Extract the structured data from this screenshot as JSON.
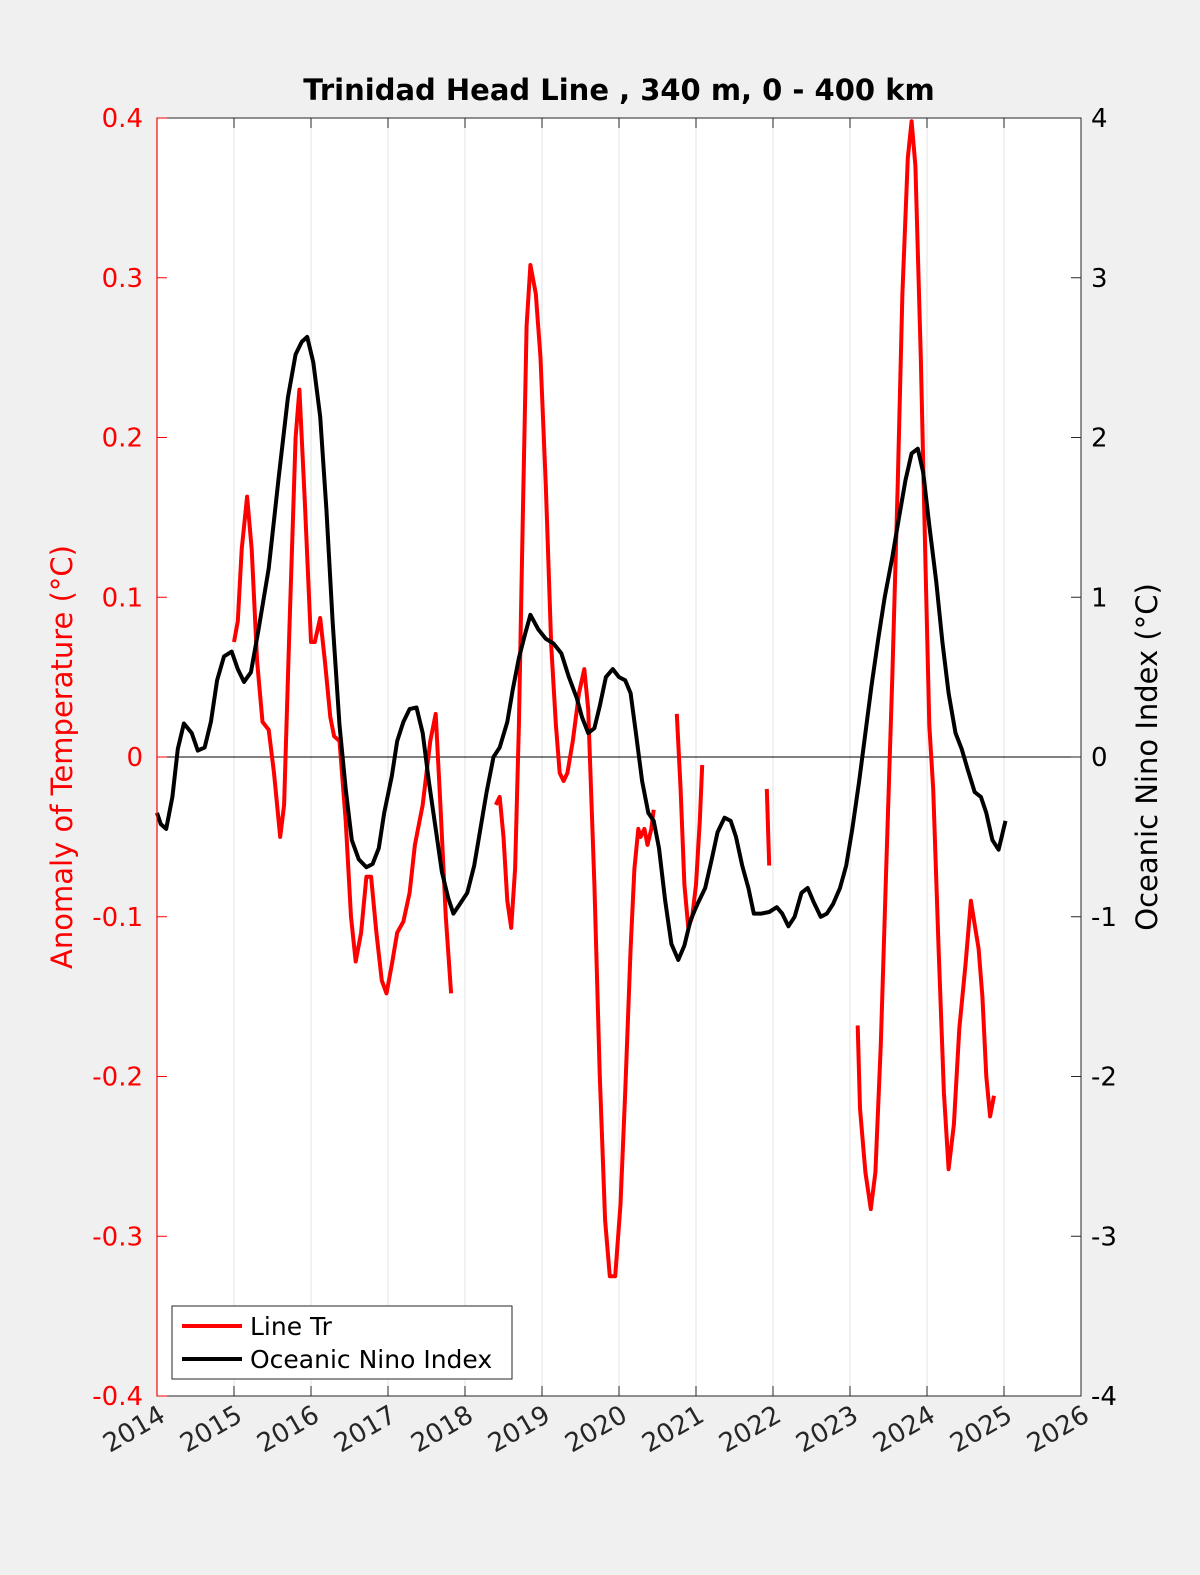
{
  "chart_data": {
    "type": "line",
    "title": "Trinidad Head Line , 340 m, 0 - 400 km",
    "xlabel": "",
    "ylabel_left": "Anomaly of Temperature (°C)",
    "ylabel_right": "Oceanic Nino Index (°C)",
    "xlim": [
      2014,
      2026
    ],
    "ylim_left": [
      -0.4,
      0.4
    ],
    "ylim_right": [
      -4,
      4
    ],
    "x_ticks": [
      "2014",
      "2015",
      "2016",
      "2017",
      "2018",
      "2019",
      "2020",
      "2021",
      "2022",
      "2023",
      "2024",
      "2025",
      "2026"
    ],
    "y_left_ticks": [
      "-0.4",
      "-0.3",
      "-0.2",
      "-0.1",
      "0",
      "0.1",
      "0.2",
      "0.3",
      "0.4"
    ],
    "y_right_ticks": [
      "-4",
      "-3",
      "-2",
      "-1",
      "0",
      "1",
      "2",
      "3",
      "4"
    ],
    "grid": "vertical",
    "zero_line": true,
    "legend_position": "bottom-left",
    "colors": {
      "line_tr": "#ff0000",
      "oni": "#000000",
      "left_axis": "#ff0000",
      "right_axis": "#000000"
    },
    "series": [
      {
        "name": "Line Tr",
        "axis": "left",
        "color": "#ff0000",
        "segments": [
          [
            [
              2015.0,
              0.072
            ],
            [
              2015.05,
              0.085
            ],
            [
              2015.1,
              0.13
            ],
            [
              2015.17,
              0.163
            ],
            [
              2015.23,
              0.13
            ],
            [
              2015.3,
              0.06
            ],
            [
              2015.37,
              0.022
            ],
            [
              2015.45,
              0.017
            ],
            [
              2015.52,
              -0.01
            ],
            [
              2015.6,
              -0.05
            ],
            [
              2015.65,
              -0.03
            ],
            [
              2015.72,
              0.08
            ],
            [
              2015.8,
              0.2
            ],
            [
              2015.85,
              0.23
            ],
            [
              2015.92,
              0.16
            ],
            [
              2016.0,
              0.072
            ],
            [
              2016.05,
              0.072
            ],
            [
              2016.12,
              0.087
            ],
            [
              2016.18,
              0.06
            ],
            [
              2016.25,
              0.025
            ],
            [
              2016.3,
              0.013
            ],
            [
              2016.37,
              0.01
            ],
            [
              2016.45,
              -0.04
            ],
            [
              2016.52,
              -0.1
            ],
            [
              2016.58,
              -0.128
            ],
            [
              2016.65,
              -0.11
            ],
            [
              2016.72,
              -0.075
            ],
            [
              2016.78,
              -0.075
            ],
            [
              2016.85,
              -0.11
            ],
            [
              2016.92,
              -0.14
            ],
            [
              2016.98,
              -0.148
            ],
            [
              2017.05,
              -0.13
            ],
            [
              2017.12,
              -0.11
            ],
            [
              2017.2,
              -0.103
            ],
            [
              2017.28,
              -0.085
            ],
            [
              2017.35,
              -0.055
            ],
            [
              2017.45,
              -0.03
            ],
            [
              2017.55,
              0.01
            ],
            [
              2017.62,
              0.027
            ],
            [
              2017.68,
              -0.03
            ],
            [
              2017.75,
              -0.1
            ],
            [
              2017.82,
              -0.148
            ]
          ],
          [
            [
              2018.4,
              -0.03
            ],
            [
              2018.45,
              -0.025
            ],
            [
              2018.5,
              -0.05
            ],
            [
              2018.55,
              -0.09
            ],
            [
              2018.6,
              -0.107
            ],
            [
              2018.65,
              -0.07
            ],
            [
              2018.7,
              0.02
            ],
            [
              2018.75,
              0.15
            ],
            [
              2018.8,
              0.27
            ],
            [
              2018.85,
              0.308
            ],
            [
              2018.92,
              0.29
            ],
            [
              2018.98,
              0.25
            ],
            [
              2019.05,
              0.17
            ],
            [
              2019.12,
              0.07
            ],
            [
              2019.18,
              0.02
            ],
            [
              2019.23,
              -0.01
            ],
            [
              2019.28,
              -0.015
            ],
            [
              2019.33,
              -0.01
            ],
            [
              2019.4,
              0.01
            ],
            [
              2019.48,
              0.04
            ],
            [
              2019.55,
              0.055
            ],
            [
              2019.6,
              0.03
            ],
            [
              2019.68,
              -0.08
            ],
            [
              2019.75,
              -0.2
            ],
            [
              2019.82,
              -0.29
            ],
            [
              2019.88,
              -0.325
            ],
            [
              2019.95,
              -0.325
            ],
            [
              2020.02,
              -0.28
            ],
            [
              2020.08,
              -0.21
            ],
            [
              2020.15,
              -0.12
            ],
            [
              2020.2,
              -0.07
            ],
            [
              2020.25,
              -0.045
            ],
            [
              2020.28,
              -0.05
            ],
            [
              2020.33,
              -0.045
            ],
            [
              2020.37,
              -0.055
            ],
            [
              2020.42,
              -0.045
            ],
            [
              2020.45,
              -0.033
            ]
          ],
          [
            [
              2020.75,
              0.027
            ],
            [
              2020.8,
              -0.02
            ],
            [
              2020.85,
              -0.08
            ],
            [
              2020.9,
              -0.107
            ],
            [
              2020.95,
              -0.1
            ],
            [
              2021.0,
              -0.08
            ],
            [
              2021.05,
              -0.04
            ],
            [
              2021.08,
              -0.005
            ]
          ],
          [
            [
              2021.92,
              -0.02
            ],
            [
              2021.95,
              -0.068
            ]
          ],
          [
            [
              2023.1,
              -0.168
            ],
            [
              2023.13,
              -0.22
            ],
            [
              2023.2,
              -0.26
            ],
            [
              2023.27,
              -0.283
            ],
            [
              2023.33,
              -0.26
            ],
            [
              2023.4,
              -0.18
            ],
            [
              2023.47,
              -0.07
            ],
            [
              2023.55,
              0.05
            ],
            [
              2023.62,
              0.17
            ],
            [
              2023.68,
              0.29
            ],
            [
              2023.75,
              0.375
            ],
            [
              2023.8,
              0.398
            ],
            [
              2023.85,
              0.37
            ],
            [
              2023.92,
              0.25
            ],
            [
              2023.98,
              0.12
            ],
            [
              2024.03,
              0.02
            ],
            [
              2024.08,
              -0.02
            ],
            [
              2024.15,
              -0.12
            ],
            [
              2024.22,
              -0.21
            ],
            [
              2024.28,
              -0.258
            ],
            [
              2024.35,
              -0.23
            ],
            [
              2024.42,
              -0.17
            ],
            [
              2024.5,
              -0.13
            ],
            [
              2024.57,
              -0.09
            ],
            [
              2024.62,
              -0.105
            ],
            [
              2024.67,
              -0.12
            ],
            [
              2024.72,
              -0.15
            ],
            [
              2024.77,
              -0.2
            ],
            [
              2024.82,
              -0.225
            ],
            [
              2024.87,
              -0.212
            ]
          ]
        ]
      },
      {
        "name": "Oceanic Nino Index",
        "axis": "right",
        "color": "#000000",
        "segments": [
          [
            [
              2014.0,
              -0.35
            ],
            [
              2014.05,
              -0.42
            ],
            [
              2014.12,
              -0.45
            ],
            [
              2014.2,
              -0.25
            ],
            [
              2014.27,
              0.05
            ],
            [
              2014.35,
              0.21
            ],
            [
              2014.45,
              0.15
            ],
            [
              2014.53,
              0.04
            ],
            [
              2014.62,
              0.06
            ],
            [
              2014.7,
              0.22
            ],
            [
              2014.78,
              0.48
            ],
            [
              2014.87,
              0.63
            ],
            [
              2014.97,
              0.66
            ],
            [
              2015.05,
              0.55
            ],
            [
              2015.13,
              0.47
            ],
            [
              2015.22,
              0.53
            ],
            [
              2015.32,
              0.8
            ],
            [
              2015.45,
              1.18
            ],
            [
              2015.58,
              1.75
            ],
            [
              2015.7,
              2.25
            ],
            [
              2015.8,
              2.52
            ],
            [
              2015.88,
              2.6
            ],
            [
              2015.95,
              2.63
            ],
            [
              2016.03,
              2.47
            ],
            [
              2016.12,
              2.13
            ],
            [
              2016.2,
              1.55
            ],
            [
              2016.28,
              0.85
            ],
            [
              2016.37,
              0.2
            ],
            [
              2016.45,
              -0.2
            ],
            [
              2016.53,
              -0.52
            ],
            [
              2016.62,
              -0.64
            ],
            [
              2016.72,
              -0.69
            ],
            [
              2016.8,
              -0.67
            ],
            [
              2016.88,
              -0.57
            ],
            [
              2016.95,
              -0.35
            ],
            [
              2017.05,
              -0.12
            ],
            [
              2017.12,
              0.1
            ],
            [
              2017.2,
              0.22
            ],
            [
              2017.28,
              0.3
            ],
            [
              2017.37,
              0.31
            ],
            [
              2017.45,
              0.15
            ],
            [
              2017.53,
              -0.15
            ],
            [
              2017.62,
              -0.45
            ],
            [
              2017.7,
              -0.72
            ],
            [
              2017.78,
              -0.88
            ],
            [
              2017.85,
              -0.98
            ],
            [
              2017.92,
              -0.93
            ],
            [
              2018.03,
              -0.85
            ],
            [
              2018.12,
              -0.68
            ],
            [
              2018.2,
              -0.45
            ],
            [
              2018.28,
              -0.22
            ],
            [
              2018.37,
              0.0
            ],
            [
              2018.45,
              0.06
            ],
            [
              2018.55,
              0.22
            ],
            [
              2018.62,
              0.42
            ],
            [
              2018.7,
              0.62
            ],
            [
              2018.78,
              0.77
            ],
            [
              2018.85,
              0.89
            ],
            [
              2018.95,
              0.8
            ],
            [
              2019.05,
              0.74
            ],
            [
              2019.15,
              0.71
            ],
            [
              2019.25,
              0.65
            ],
            [
              2019.35,
              0.5
            ],
            [
              2019.45,
              0.37
            ],
            [
              2019.52,
              0.25
            ],
            [
              2019.6,
              0.15
            ],
            [
              2019.68,
              0.18
            ],
            [
              2019.75,
              0.32
            ],
            [
              2019.83,
              0.5
            ],
            [
              2019.92,
              0.55
            ],
            [
              2020.0,
              0.5
            ],
            [
              2020.08,
              0.48
            ],
            [
              2020.15,
              0.4
            ],
            [
              2020.22,
              0.15
            ],
            [
              2020.3,
              -0.15
            ],
            [
              2020.38,
              -0.35
            ],
            [
              2020.45,
              -0.4
            ],
            [
              2020.52,
              -0.57
            ],
            [
              2020.6,
              -0.9
            ],
            [
              2020.68,
              -1.17
            ],
            [
              2020.77,
              -1.27
            ],
            [
              2020.85,
              -1.18
            ],
            [
              2020.93,
              -1.02
            ],
            [
              2021.02,
              -0.92
            ],
            [
              2021.12,
              -0.82
            ],
            [
              2021.2,
              -0.65
            ],
            [
              2021.28,
              -0.47
            ],
            [
              2021.37,
              -0.38
            ],
            [
              2021.45,
              -0.4
            ],
            [
              2021.52,
              -0.5
            ],
            [
              2021.6,
              -0.68
            ],
            [
              2021.68,
              -0.82
            ],
            [
              2021.75,
              -0.98
            ],
            [
              2021.85,
              -0.98
            ],
            [
              2021.95,
              -0.97
            ],
            [
              2022.05,
              -0.94
            ],
            [
              2022.12,
              -0.98
            ],
            [
              2022.2,
              -1.06
            ],
            [
              2022.28,
              -1.0
            ],
            [
              2022.37,
              -0.85
            ],
            [
              2022.45,
              -0.82
            ],
            [
              2022.53,
              -0.91
            ],
            [
              2022.62,
              -1.0
            ],
            [
              2022.7,
              -0.98
            ],
            [
              2022.78,
              -0.92
            ],
            [
              2022.87,
              -0.82
            ],
            [
              2022.95,
              -0.68
            ],
            [
              2023.03,
              -0.45
            ],
            [
              2023.12,
              -0.15
            ],
            [
              2023.2,
              0.15
            ],
            [
              2023.28,
              0.45
            ],
            [
              2023.37,
              0.75
            ],
            [
              2023.45,
              1.0
            ],
            [
              2023.55,
              1.25
            ],
            [
              2023.63,
              1.48
            ],
            [
              2023.72,
              1.73
            ],
            [
              2023.8,
              1.9
            ],
            [
              2023.88,
              1.93
            ],
            [
              2023.95,
              1.78
            ],
            [
              2024.03,
              1.45
            ],
            [
              2024.12,
              1.1
            ],
            [
              2024.2,
              0.72
            ],
            [
              2024.28,
              0.4
            ],
            [
              2024.37,
              0.15
            ],
            [
              2024.45,
              0.05
            ],
            [
              2024.53,
              -0.08
            ],
            [
              2024.62,
              -0.22
            ],
            [
              2024.7,
              -0.25
            ],
            [
              2024.77,
              -0.35
            ],
            [
              2024.85,
              -0.52
            ],
            [
              2024.93,
              -0.58
            ],
            [
              2025.02,
              -0.4
            ]
          ]
        ]
      }
    ]
  }
}
